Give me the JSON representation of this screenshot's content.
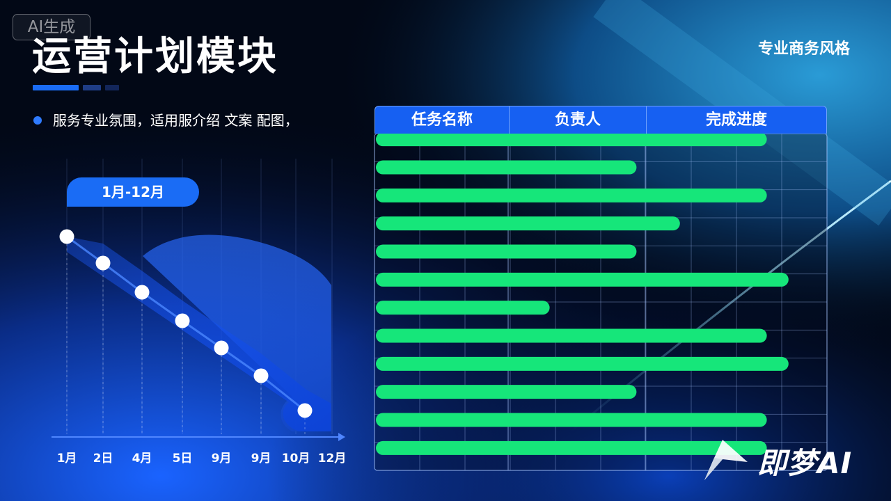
{
  "badge": "AI生成",
  "title": "运营计划模块",
  "style_tag": "专业商务风格",
  "bullet": "服务专业氛围，适用服介绍  文案 配图，",
  "range_label": "1月-12月",
  "colors": {
    "accent_blue": "#1660f2",
    "bar_green": "#16e67a",
    "point_white": "#ffffff"
  },
  "table": {
    "headers": [
      "任务名称",
      "负责人",
      "完成进度"
    ],
    "progress": [
      0.9,
      0.6,
      0.9,
      0.7,
      0.6,
      0.95,
      0.4,
      0.9,
      0.95,
      0.6,
      0.9,
      0.9
    ]
  },
  "logo": {
    "icon": "jimeng-logo-icon",
    "text": "即梦AI"
  },
  "chart_data": {
    "type": "line",
    "x": [
      "1月",
      "2日",
      "4月",
      "5日",
      "9月",
      "9月",
      "10月",
      "12月"
    ],
    "points_shown": 7
  }
}
